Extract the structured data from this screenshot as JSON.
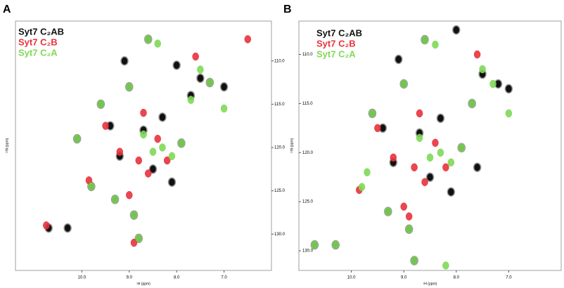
{
  "chart_data": [
    {
      "type": "scatter",
      "panel_label": "A",
      "xlabel": "¹H (ppm)",
      "ylabel": "¹⁵N (ppm)",
      "xlim": [
        11.4,
        6.0
      ],
      "ylim": [
        105.4,
        134.2
      ],
      "xticks": [
        {
          "value": 10,
          "label": "10.0"
        },
        {
          "value": 9,
          "label": "9.0"
        },
        {
          "value": 8,
          "label": "8.0"
        },
        {
          "value": 7,
          "label": "7.0"
        }
      ],
      "yticks": [
        {
          "value": 110,
          "label": "110.0"
        },
        {
          "value": 115,
          "label": "115.0"
        },
        {
          "value": 120,
          "label": "120.0"
        },
        {
          "value": 125,
          "label": "125.0"
        },
        {
          "value": 130,
          "label": "130.0"
        }
      ],
      "series": [
        {
          "name": "Syt7 C₂AB",
          "color": "#111111",
          "x": [
            10.7,
            10.3,
            10.1,
            9.8,
            9.6,
            9.4,
            9.2,
            9.0,
            8.9,
            8.7,
            8.5,
            8.3,
            8.1,
            7.9,
            7.7,
            7.5,
            7.3,
            8.6,
            9.1,
            8.0,
            7.0,
            9.3,
            8.8
          ],
          "y": [
            129.3,
            129.3,
            119.0,
            124.5,
            115.0,
            117.5,
            121.0,
            113.0,
            127.8,
            118.0,
            122.5,
            116.5,
            124.0,
            119.5,
            114.0,
            112.0,
            112.5,
            107.5,
            110.0,
            110.5,
            113.0,
            126.0,
            130.5
          ]
        },
        {
          "name": "Syt7 C₂B",
          "color": "#e8323c",
          "x": [
            10.75,
            9.85,
            9.2,
            8.8,
            8.6,
            8.4,
            8.2,
            9.0,
            8.7,
            7.6,
            6.5,
            9.5,
            8.9
          ],
          "y": [
            129.0,
            123.8,
            120.5,
            121.5,
            123.0,
            119.0,
            121.5,
            125.5,
            116.0,
            109.5,
            107.5,
            117.5,
            131.0
          ]
        },
        {
          "name": "Syt7 C₂A",
          "color": "#7ed957",
          "x": [
            10.1,
            9.8,
            9.6,
            9.0,
            8.7,
            8.5,
            8.3,
            8.1,
            7.9,
            7.7,
            7.0,
            8.6,
            8.4,
            7.5,
            9.3,
            8.8,
            8.9,
            7.3
          ],
          "y": [
            119.0,
            124.5,
            115.0,
            113.0,
            118.5,
            120.5,
            120.0,
            121.0,
            119.5,
            114.5,
            115.5,
            107.5,
            108.0,
            111.0,
            126.0,
            130.5,
            127.8,
            112.5
          ]
        }
      ]
    },
    {
      "type": "scatter",
      "panel_label": "B",
      "xlabel": "¹H (ppm)",
      "ylabel": "¹⁵N (ppm)",
      "xlim": [
        11.0,
        6.0
      ],
      "ylim": [
        106.6,
        132.0
      ],
      "xticks": [
        {
          "value": 10,
          "label": "10.0"
        },
        {
          "value": 9,
          "label": "9.0"
        },
        {
          "value": 8,
          "label": "8.0"
        },
        {
          "value": 7,
          "label": "7.0"
        }
      ],
      "yticks": [
        {
          "value": 110,
          "label": "110.0"
        },
        {
          "value": 115,
          "label": "115.0"
        },
        {
          "value": 120,
          "label": "120.0"
        },
        {
          "value": 125,
          "label": "125.0"
        },
        {
          "value": 130,
          "label": "130.0"
        }
      ],
      "series": [
        {
          "name": "Syt7 C₂AB",
          "color": "#111111",
          "x": [
            10.7,
            10.3,
            9.6,
            9.4,
            9.2,
            9.0,
            8.9,
            8.7,
            8.5,
            8.3,
            8.1,
            7.9,
            7.7,
            7.5,
            7.2,
            8.6,
            9.1,
            8.0,
            7.0,
            9.3,
            8.8,
            7.6
          ],
          "y": [
            129.4,
            129.4,
            116.0,
            117.5,
            121.0,
            113.0,
            127.8,
            118.0,
            122.5,
            116.5,
            124.0,
            119.5,
            115.0,
            112.0,
            113.0,
            108.5,
            110.5,
            107.5,
            113.5,
            126.0,
            131.0,
            121.5
          ]
        },
        {
          "name": "Syt7 C₂B",
          "color": "#e8323c",
          "x": [
            9.85,
            9.2,
            8.8,
            8.6,
            8.4,
            8.2,
            9.0,
            8.7,
            7.6,
            9.5,
            8.9
          ],
          "y": [
            123.8,
            120.5,
            121.5,
            123.0,
            119.0,
            121.5,
            125.5,
            116.0,
            110.0,
            117.5,
            126.5
          ]
        },
        {
          "name": "Syt7 C₂A",
          "color": "#7ed957",
          "x": [
            10.7,
            10.3,
            9.8,
            9.6,
            9.0,
            8.7,
            8.5,
            8.3,
            8.1,
            7.9,
            7.7,
            7.0,
            8.6,
            8.4,
            7.5,
            9.3,
            8.8,
            8.9,
            7.3,
            9.7,
            8.2
          ],
          "y": [
            129.4,
            129.4,
            123.5,
            116.0,
            113.0,
            118.5,
            120.5,
            120.0,
            121.0,
            119.5,
            115.0,
            116.0,
            108.5,
            109.0,
            111.5,
            126.0,
            131.0,
            127.8,
            113.0,
            122.0,
            131.5
          ]
        }
      ]
    }
  ]
}
